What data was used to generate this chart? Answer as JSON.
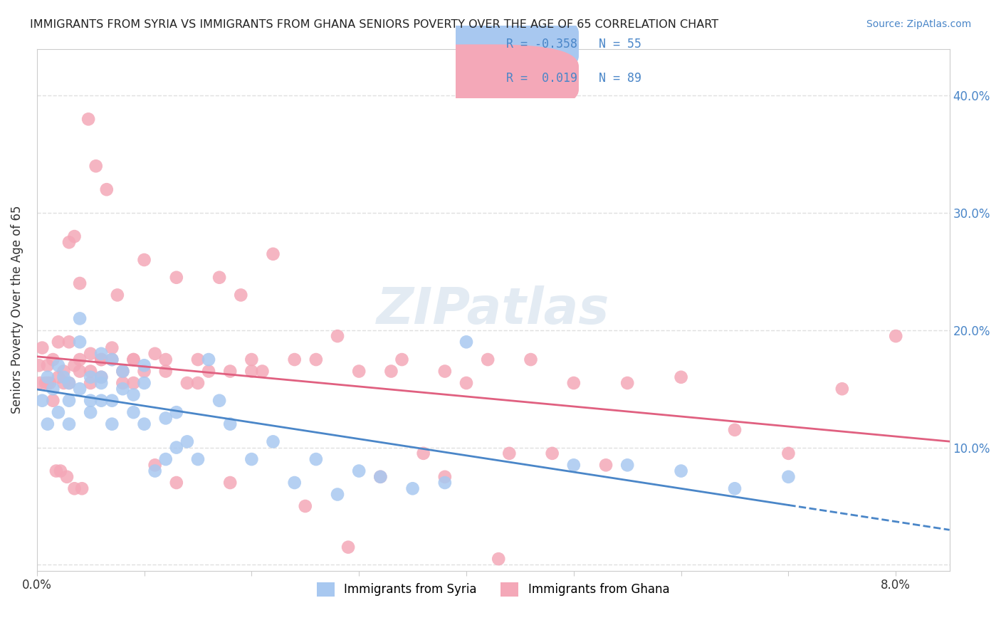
{
  "title": "IMMIGRANTS FROM SYRIA VS IMMIGRANTS FROM GHANA SENIORS POVERTY OVER THE AGE OF 65 CORRELATION CHART",
  "source": "Source: ZipAtlas.com",
  "xlabel_bottom": "",
  "ylabel": "Seniors Poverty Over the Age of 65",
  "x_ticks": [
    0.0,
    0.01,
    0.02,
    0.03,
    0.04,
    0.05,
    0.06,
    0.07,
    0.08
  ],
  "x_tick_labels": [
    "0.0%",
    "",
    "",
    "",
    "",
    "",
    "",
    "",
    "8.0%"
  ],
  "y_ticks": [
    0.0,
    0.1,
    0.2,
    0.3,
    0.4
  ],
  "y_tick_labels_left": [
    "",
    "",
    "",
    "",
    ""
  ],
  "y_tick_labels_right": [
    "",
    "10.0%",
    "20.0%",
    "30.0%",
    "40.0%"
  ],
  "xlim": [
    0.0,
    0.085
  ],
  "ylim": [
    -0.005,
    0.44
  ],
  "syria_color": "#a8c8f0",
  "ghana_color": "#f4a8b8",
  "syria_line_color": "#4a86c8",
  "ghana_line_color": "#e06080",
  "syria_R": "-0.358",
  "syria_N": "55",
  "ghana_R": "0.019",
  "ghana_N": "89",
  "watermark": "ZIPatlas",
  "watermark_color": "#c8d8e8",
  "background_color": "#ffffff",
  "grid_color": "#e0e0e0",
  "legend_label_syria": "Immigrants from Syria",
  "legend_label_ghana": "Immigrants from Ghana",
  "syria_x": [
    0.0005,
    0.001,
    0.001,
    0.0015,
    0.002,
    0.002,
    0.0025,
    0.003,
    0.003,
    0.003,
    0.004,
    0.004,
    0.004,
    0.005,
    0.005,
    0.005,
    0.006,
    0.006,
    0.006,
    0.006,
    0.007,
    0.007,
    0.007,
    0.008,
    0.008,
    0.009,
    0.009,
    0.01,
    0.01,
    0.01,
    0.011,
    0.012,
    0.012,
    0.013,
    0.013,
    0.014,
    0.015,
    0.016,
    0.017,
    0.018,
    0.02,
    0.022,
    0.024,
    0.026,
    0.028,
    0.03,
    0.032,
    0.035,
    0.038,
    0.04,
    0.05,
    0.055,
    0.06,
    0.065,
    0.07
  ],
  "syria_y": [
    0.14,
    0.12,
    0.16,
    0.15,
    0.13,
    0.17,
    0.16,
    0.12,
    0.14,
    0.155,
    0.19,
    0.21,
    0.15,
    0.14,
    0.16,
    0.13,
    0.18,
    0.155,
    0.14,
    0.16,
    0.12,
    0.175,
    0.14,
    0.15,
    0.165,
    0.13,
    0.145,
    0.17,
    0.12,
    0.155,
    0.08,
    0.125,
    0.09,
    0.1,
    0.13,
    0.105,
    0.09,
    0.175,
    0.14,
    0.12,
    0.09,
    0.105,
    0.07,
    0.09,
    0.06,
    0.08,
    0.075,
    0.065,
    0.07,
    0.19,
    0.085,
    0.085,
    0.08,
    0.065,
    0.075
  ],
  "ghana_x": [
    0.0002,
    0.0005,
    0.001,
    0.001,
    0.0015,
    0.0015,
    0.002,
    0.002,
    0.0025,
    0.0025,
    0.003,
    0.003,
    0.003,
    0.0035,
    0.0035,
    0.004,
    0.004,
    0.004,
    0.005,
    0.005,
    0.005,
    0.006,
    0.006,
    0.006,
    0.007,
    0.007,
    0.008,
    0.008,
    0.009,
    0.009,
    0.01,
    0.01,
    0.011,
    0.012,
    0.012,
    0.013,
    0.014,
    0.015,
    0.016,
    0.017,
    0.018,
    0.019,
    0.02,
    0.021,
    0.022,
    0.024,
    0.026,
    0.028,
    0.03,
    0.032,
    0.034,
    0.036,
    0.038,
    0.04,
    0.042,
    0.044,
    0.046,
    0.05,
    0.055,
    0.06,
    0.065,
    0.07,
    0.075,
    0.08,
    0.0003,
    0.0008,
    0.0012,
    0.0018,
    0.0022,
    0.0028,
    0.0035,
    0.0042,
    0.0048,
    0.0055,
    0.0065,
    0.0075,
    0.009,
    0.011,
    0.013,
    0.015,
    0.018,
    0.02,
    0.025,
    0.029,
    0.033,
    0.038,
    0.043,
    0.048,
    0.053
  ],
  "ghana_y": [
    0.17,
    0.185,
    0.155,
    0.17,
    0.14,
    0.175,
    0.16,
    0.19,
    0.155,
    0.165,
    0.155,
    0.275,
    0.19,
    0.17,
    0.28,
    0.165,
    0.175,
    0.24,
    0.165,
    0.18,
    0.155,
    0.175,
    0.16,
    0.175,
    0.185,
    0.175,
    0.155,
    0.165,
    0.175,
    0.155,
    0.165,
    0.26,
    0.18,
    0.165,
    0.175,
    0.245,
    0.155,
    0.175,
    0.165,
    0.245,
    0.165,
    0.23,
    0.175,
    0.165,
    0.265,
    0.175,
    0.175,
    0.195,
    0.165,
    0.075,
    0.175,
    0.095,
    0.075,
    0.155,
    0.175,
    0.095,
    0.175,
    0.155,
    0.155,
    0.16,
    0.115,
    0.095,
    0.15,
    0.195,
    0.155,
    0.155,
    0.155,
    0.08,
    0.08,
    0.075,
    0.065,
    0.065,
    0.38,
    0.34,
    0.32,
    0.23,
    0.175,
    0.085,
    0.07,
    0.155,
    0.07,
    0.165,
    0.05,
    0.015,
    0.165,
    0.165,
    0.005,
    0.095,
    0.085
  ]
}
